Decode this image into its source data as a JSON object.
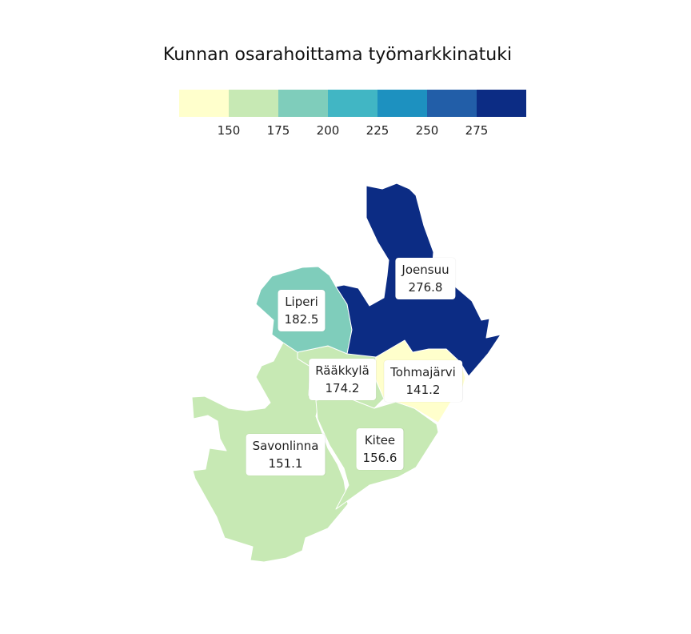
{
  "title": "Kunnan osarahoittama työmarkkinatuki",
  "legend": {
    "colors": [
      "#ffffcc",
      "#c7e9b4",
      "#7fcdbb",
      "#41b6c4",
      "#1d91c0",
      "#225ea8",
      "#0c2c84"
    ],
    "ticks": [
      "150",
      "175",
      "200",
      "225",
      "250",
      "275"
    ]
  },
  "regions": [
    {
      "id": "joensuu",
      "name": "Joensuu",
      "value": "276.8",
      "color": "#0c2c84"
    },
    {
      "id": "liperi",
      "name": "Liperi",
      "value": "182.5",
      "color": "#7fcdbb"
    },
    {
      "id": "raakkyla",
      "name": "Rääkkylä",
      "value": "174.2",
      "color": "#c7e9b4"
    },
    {
      "id": "tohmajarvi",
      "name": "Tohmajärvi",
      "value": "141.2",
      "color": "#ffffcc"
    },
    {
      "id": "kitee",
      "name": "Kitee",
      "value": "156.6",
      "color": "#c7e9b4"
    },
    {
      "id": "savonlinna",
      "name": "Savonlinna",
      "value": "151.1",
      "color": "#c7e9b4"
    }
  ]
}
